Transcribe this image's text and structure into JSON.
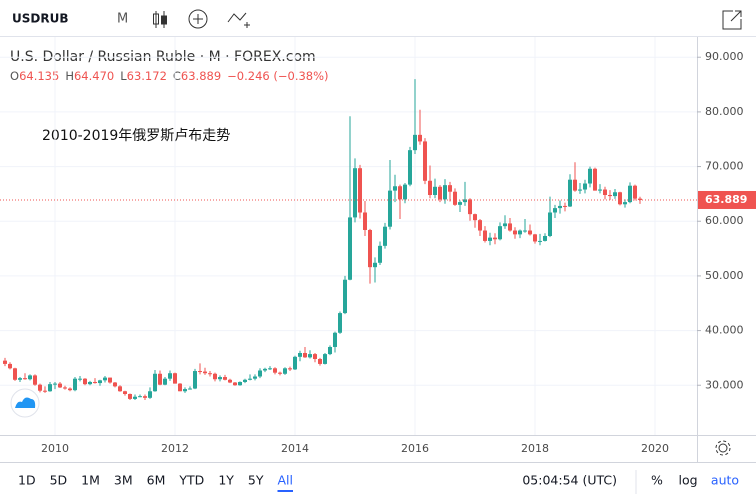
{
  "toolbar": {
    "symbol": "USDRUB",
    "interval": "M"
  },
  "header": {
    "title": "U.S. Dollar / Russian Ruble · M · FOREX.com",
    "ohlc": [
      {
        "prefix": "O",
        "value": "64.135"
      },
      {
        "prefix": "H",
        "value": "64.470"
      },
      {
        "prefix": "L",
        "value": "63.172"
      },
      {
        "prefix": "C",
        "value": "63.889"
      }
    ],
    "change": "−0.246 (−0.38%)"
  },
  "chart_data": {
    "type": "candlestick",
    "annotation": "2010-2019年俄罗斯卢布走势",
    "categories": [
      null,
      null,
      null,
      null,
      null,
      null,
      null,
      null,
      null,
      null,
      "2010",
      null,
      null,
      null,
      null,
      null,
      null,
      null,
      null,
      null,
      null,
      null,
      null,
      null,
      null,
      null,
      null,
      null,
      null,
      null,
      null,
      null,
      null,
      null,
      "2012",
      null,
      null,
      null,
      null,
      null,
      null,
      null,
      null,
      null,
      null,
      null,
      null,
      null,
      null,
      null,
      null,
      null,
      null,
      null,
      null,
      null,
      null,
      null,
      "2014",
      null,
      null,
      null,
      null,
      null,
      null,
      null,
      null,
      null,
      null,
      null,
      null,
      null,
      null,
      null,
      null,
      null,
      null,
      null,
      null,
      null,
      null,
      null,
      "2016",
      null,
      null,
      null,
      null,
      null,
      null,
      null,
      null,
      null,
      null,
      null,
      null,
      null,
      null,
      null,
      null,
      null,
      null,
      null,
      null,
      null,
      null,
      null,
      "2018",
      null,
      null,
      null,
      null,
      null,
      null,
      null,
      null,
      null,
      null,
      null,
      null,
      null,
      null,
      null,
      null,
      null,
      null,
      null,
      null,
      null,
      null,
      null,
      "2020"
    ],
    "open": [
      34.5,
      33.9,
      33.1,
      31.0,
      31.3,
      31.1,
      31.8,
      30.1,
      29.0,
      28.9,
      30.2,
      30.3,
      29.6,
      29.4,
      29.1,
      31.2,
      31.2,
      30.2,
      30.6,
      30.4,
      30.9,
      31.4,
      30.5,
      29.8,
      28.9,
      28.4,
      27.5,
      27.9,
      28.0,
      27.7,
      28.9,
      32.1,
      30.1,
      31.2,
      32.2,
      30.3,
      28.9,
      29.3,
      29.4,
      32.6,
      32.5,
      32.2,
      32.1,
      31.1,
      31.5,
      31.0,
      30.5,
      30.0,
      30.6,
      31.0,
      31.2,
      31.6,
      32.7,
      33.0,
      33.1,
      32.3,
      32.1,
      33.1,
      32.9,
      35.2,
      35.9,
      35.1,
      35.7,
      34.8,
      33.9,
      35.7,
      37.0,
      39.6,
      43.2,
      49.3,
      60.7,
      69.7,
      61.6,
      58.4,
      51.6,
      52.4,
      55.5,
      59.0,
      65.6,
      66.4,
      64.0,
      66.7,
      73.0,
      75.8,
      74.6,
      67.4,
      64.8,
      66.3,
      64.0,
      66.6,
      65.4,
      63.0,
      63.5,
      64.0,
      61.3,
      60.2,
      58.3,
      56.4,
      57.0,
      56.7,
      59.1,
      59.6,
      58.3,
      57.6,
      58.3,
      58.3,
      57.6,
      56.3,
      56.4,
      57.3,
      61.6,
      62.4,
      62.8,
      62.7,
      67.6,
      65.6,
      65.8,
      66.9,
      69.6,
      65.6,
      65.8,
      64.8,
      64.6,
      65.3,
      63.1,
      63.5,
      66.5,
      64.135,
      null,
      null,
      null
    ],
    "high": [
      35.0,
      34.2,
      33.2,
      31.5,
      32.2,
      32.0,
      32.0,
      30.3,
      29.8,
      30.6,
      30.6,
      30.6,
      29.9,
      29.6,
      31.5,
      31.7,
      31.3,
      30.8,
      31.3,
      31.0,
      31.7,
      31.4,
      30.6,
      30.0,
      29.0,
      28.5,
      28.3,
      28.3,
      28.3,
      29.6,
      32.8,
      32.7,
      31.5,
      32.7,
      32.3,
      30.4,
      29.6,
      29.8,
      33.0,
      34.0,
      33.2,
      32.6,
      32.3,
      31.8,
      31.9,
      31.2,
      30.6,
      30.7,
      31.2,
      32.0,
      32.0,
      33.1,
      33.2,
      33.5,
      33.3,
      32.5,
      33.3,
      33.4,
      35.4,
      36.3,
      37.0,
      36.4,
      35.9,
      35.0,
      35.9,
      37.3,
      39.8,
      43.5,
      50.0,
      79.2,
      71.5,
      70.3,
      63.7,
      58.6,
      53.4,
      56.3,
      59.7,
      71.2,
      68.5,
      66.7,
      67.0,
      73.6,
      86.0,
      80.4,
      75.2,
      70.2,
      67.8,
      66.6,
      67.7,
      67.2,
      66.0,
      63.8,
      67.2,
      64.2,
      61.4,
      60.4,
      59.1,
      57.9,
      57.8,
      59.8,
      61.1,
      60.6,
      58.9,
      58.5,
      60.4,
      59.4,
      57.7,
      57.7,
      57.8,
      64.5,
      63.0,
      63.8,
      63.4,
      68.6,
      70.8,
      67.0,
      67.6,
      70.0,
      69.8,
      66.8,
      66.3,
      65.7,
      65.9,
      65.4,
      64.0,
      67.1,
      66.7,
      64.47,
      null,
      null,
      null
    ],
    "low": [
      33.5,
      32.9,
      30.8,
      30.6,
      31.0,
      30.9,
      29.9,
      28.7,
      28.6,
      28.8,
      29.3,
      29.5,
      29.2,
      28.9,
      28.9,
      30.7,
      30.0,
      30.0,
      30.3,
      29.9,
      30.5,
      30.3,
      29.6,
      28.8,
      28.1,
      27.3,
      27.3,
      27.8,
      27.3,
      27.5,
      28.8,
      30.0,
      30.0,
      30.8,
      30.3,
      28.9,
      28.6,
      29.2,
      29.3,
      32.0,
      31.9,
      31.6,
      30.7,
      30.7,
      30.9,
      30.4,
      29.9,
      29.9,
      30.4,
      30.9,
      30.9,
      31.3,
      32.4,
      32.8,
      32.0,
      31.8,
      31.9,
      32.6,
      32.8,
      34.4,
      35.0,
      34.9,
      34.2,
      33.6,
      33.8,
      35.5,
      36.0,
      39.4,
      43.0,
      49.2,
      59.8,
      60.5,
      57.3,
      48.6,
      48.8,
      52.0,
      55.0,
      58.5,
      63.5,
      60.4,
      63.3,
      66.4,
      72.3,
      74.0,
      66.8,
      64.2,
      64.2,
      63.5,
      63.2,
      63.6,
      62.8,
      61.7,
      62.8,
      60.1,
      58.8,
      57.3,
      56.1,
      55.6,
      55.8,
      56.5,
      58.6,
      58.1,
      56.8,
      56.9,
      57.9,
      57.4,
      55.9,
      55.6,
      56.3,
      57.1,
      60.6,
      61.4,
      61.8,
      62.6,
      65.4,
      65.0,
      65.1,
      66.2,
      65.6,
      65.1,
      64.0,
      63.9,
      64.1,
      62.9,
      62.5,
      63.3,
      63.8,
      63.172,
      null,
      null,
      null
    ],
    "close": [
      33.9,
      33.1,
      31.0,
      31.3,
      31.1,
      31.8,
      30.1,
      29.0,
      28.9,
      30.2,
      30.3,
      29.6,
      29.4,
      29.1,
      31.2,
      31.2,
      30.2,
      30.6,
      30.4,
      30.9,
      31.4,
      30.5,
      29.8,
      28.9,
      28.4,
      27.5,
      27.9,
      28.0,
      27.7,
      28.9,
      32.1,
      30.1,
      31.2,
      32.2,
      30.3,
      28.9,
      29.3,
      29.4,
      32.6,
      32.5,
      32.2,
      32.1,
      31.1,
      31.5,
      31.0,
      30.5,
      30.0,
      30.6,
      31.0,
      31.2,
      31.6,
      32.7,
      33.0,
      33.1,
      32.3,
      32.1,
      33.1,
      32.9,
      35.2,
      35.9,
      35.1,
      35.7,
      34.8,
      33.9,
      35.7,
      37.0,
      39.6,
      43.2,
      49.3,
      60.7,
      69.7,
      61.6,
      58.4,
      51.6,
      52.4,
      55.5,
      59.0,
      65.6,
      66.4,
      64.0,
      66.7,
      73.0,
      75.8,
      74.6,
      67.4,
      64.8,
      66.3,
      64.0,
      66.6,
      65.4,
      63.0,
      63.5,
      64.0,
      61.3,
      60.2,
      58.3,
      56.4,
      57.0,
      56.7,
      59.1,
      59.6,
      58.3,
      57.6,
      58.3,
      58.3,
      57.6,
      56.3,
      56.4,
      57.3,
      61.6,
      62.4,
      62.8,
      62.7,
      67.6,
      65.6,
      65.8,
      66.9,
      69.6,
      65.6,
      65.8,
      64.8,
      64.6,
      65.3,
      63.1,
      63.5,
      66.5,
      64.135,
      63.889,
      null,
      null,
      null
    ],
    "up_color": "#26a69a",
    "down_color": "#ef5350",
    "last_price_color": "#ef5350",
    "ylim": [
      20.9,
      93.7
    ],
    "yticks": [
      {
        "value": 30,
        "label": "30.000"
      },
      {
        "value": 40,
        "label": "40.000"
      },
      {
        "value": 50,
        "label": "50.000"
      },
      {
        "value": 60,
        "label": "60.000"
      },
      {
        "value": 70,
        "label": "70.000"
      },
      {
        "value": 80,
        "label": "80.000"
      },
      {
        "value": 90,
        "label": "90.000"
      }
    ],
    "grid": true
  },
  "footer": {
    "ranges": [
      "1D",
      "5D",
      "1M",
      "3M",
      "6M",
      "YTD",
      "1Y",
      "5Y",
      "All"
    ],
    "active_range": 8,
    "clock": "05:04:54 (UTC)",
    "scale_buttons": [
      "%",
      "log",
      "auto"
    ],
    "active_scale": 2
  }
}
